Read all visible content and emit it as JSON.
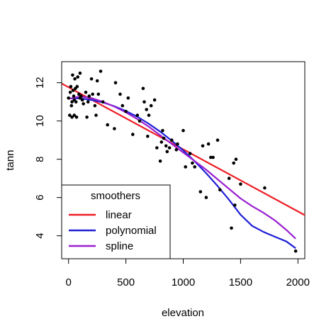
{
  "chart_data": {
    "type": "scatter",
    "xlabel": "elevation",
    "ylabel": "tann",
    "xlim": [
      -60,
      2060
    ],
    "ylim": [
      2.8,
      13.1
    ],
    "x_ticks": [
      0,
      500,
      1000,
      1500,
      2000
    ],
    "y_ticks": [
      4,
      6,
      8,
      10,
      12
    ],
    "grid": false,
    "points": [
      [
        0,
        11.2
      ],
      [
        10,
        10.3
      ],
      [
        15,
        11.5
      ],
      [
        20,
        11.8
      ],
      [
        25,
        10.8
      ],
      [
        30,
        11.0
      ],
      [
        30,
        10.2
      ],
      [
        35,
        12.4
      ],
      [
        40,
        11.6
      ],
      [
        45,
        11.3
      ],
      [
        50,
        10.3
      ],
      [
        50,
        11.1
      ],
      [
        55,
        12.2
      ],
      [
        60,
        11.7
      ],
      [
        65,
        11.0
      ],
      [
        70,
        10.2
      ],
      [
        75,
        11.8
      ],
      [
        80,
        12.3
      ],
      [
        90,
        11.4
      ],
      [
        100,
        12.5
      ],
      [
        100,
        11.2
      ],
      [
        110,
        11.3
      ],
      [
        120,
        11.1
      ],
      [
        130,
        10.9
      ],
      [
        150,
        11.5
      ],
      [
        160,
        10.2
      ],
      [
        170,
        11.0
      ],
      [
        180,
        11.3
      ],
      [
        200,
        12.2
      ],
      [
        210,
        11.4
      ],
      [
        230,
        10.8
      ],
      [
        240,
        10.3
      ],
      [
        250,
        12.1
      ],
      [
        260,
        11.4
      ],
      [
        280,
        12.6
      ],
      [
        300,
        11.0
      ],
      [
        340,
        9.8
      ],
      [
        400,
        9.6
      ],
      [
        410,
        12.0
      ],
      [
        450,
        11.4
      ],
      [
        470,
        10.8
      ],
      [
        500,
        10.5
      ],
      [
        520,
        11.2
      ],
      [
        560,
        9.3
      ],
      [
        600,
        10.3
      ],
      [
        620,
        10.0
      ],
      [
        650,
        11.7
      ],
      [
        660,
        11.0
      ],
      [
        680,
        10.6
      ],
      [
        690,
        9.2
      ],
      [
        700,
        10.3
      ],
      [
        720,
        10.8
      ],
      [
        750,
        11.1
      ],
      [
        770,
        8.6
      ],
      [
        800,
        7.9
      ],
      [
        810,
        8.9
      ],
      [
        820,
        9.5
      ],
      [
        830,
        9.1
      ],
      [
        850,
        8.7
      ],
      [
        860,
        8.4
      ],
      [
        880,
        8.6
      ],
      [
        900,
        9.0
      ],
      [
        940,
        8.5
      ],
      [
        950,
        8.8
      ],
      [
        1000,
        9.5
      ],
      [
        1020,
        7.6
      ],
      [
        1060,
        8.3
      ],
      [
        1080,
        7.8
      ],
      [
        1100,
        7.6
      ],
      [
        1150,
        6.3
      ],
      [
        1170,
        8.7
      ],
      [
        1200,
        6.0
      ],
      [
        1220,
        8.8
      ],
      [
        1240,
        8.1
      ],
      [
        1260,
        8.1
      ],
      [
        1300,
        9.0
      ],
      [
        1320,
        6.4
      ],
      [
        1400,
        7.0
      ],
      [
        1420,
        4.4
      ],
      [
        1440,
        7.8
      ],
      [
        1450,
        5.6
      ],
      [
        1460,
        8.0
      ],
      [
        1500,
        6.7
      ],
      [
        1710,
        6.5
      ],
      [
        1980,
        3.2
      ]
    ],
    "series": [
      {
        "name": "linear",
        "color": "#ee1c25",
        "x": [
          -60,
          2060
        ],
        "values": [
          11.96,
          5.08
        ]
      },
      {
        "name": "polynomial",
        "color": "#1f1fd6",
        "x": [
          0,
          100,
          200,
          300,
          400,
          500,
          600,
          700,
          800,
          900,
          1000,
          1100,
          1200,
          1300,
          1400,
          1500,
          1600,
          1700,
          1800,
          1900,
          1980
        ],
        "values": [
          11.18,
          11.18,
          11.1,
          10.97,
          10.77,
          10.52,
          10.22,
          9.85,
          9.44,
          8.97,
          8.46,
          7.89,
          7.27,
          6.6,
          5.88,
          5.1,
          4.52,
          4.2,
          3.95,
          3.7,
          3.35
        ]
      },
      {
        "name": "spline",
        "color": "#9a1fcf",
        "x": [
          0,
          100,
          200,
          300,
          400,
          500,
          600,
          700,
          800,
          900,
          1000,
          1100,
          1200,
          1300,
          1400,
          1500,
          1600,
          1700,
          1800,
          1900,
          1980
        ],
        "values": [
          11.15,
          11.28,
          11.2,
          11.0,
          10.75,
          10.45,
          10.1,
          9.7,
          9.25,
          8.8,
          8.35,
          7.9,
          7.45,
          6.95,
          6.45,
          5.95,
          5.55,
          5.2,
          4.8,
          4.3,
          3.85
        ]
      }
    ],
    "legend": {
      "title": "smoothers",
      "placement": "bottom-left",
      "entries": [
        "linear",
        "polynomial",
        "spline"
      ]
    }
  }
}
